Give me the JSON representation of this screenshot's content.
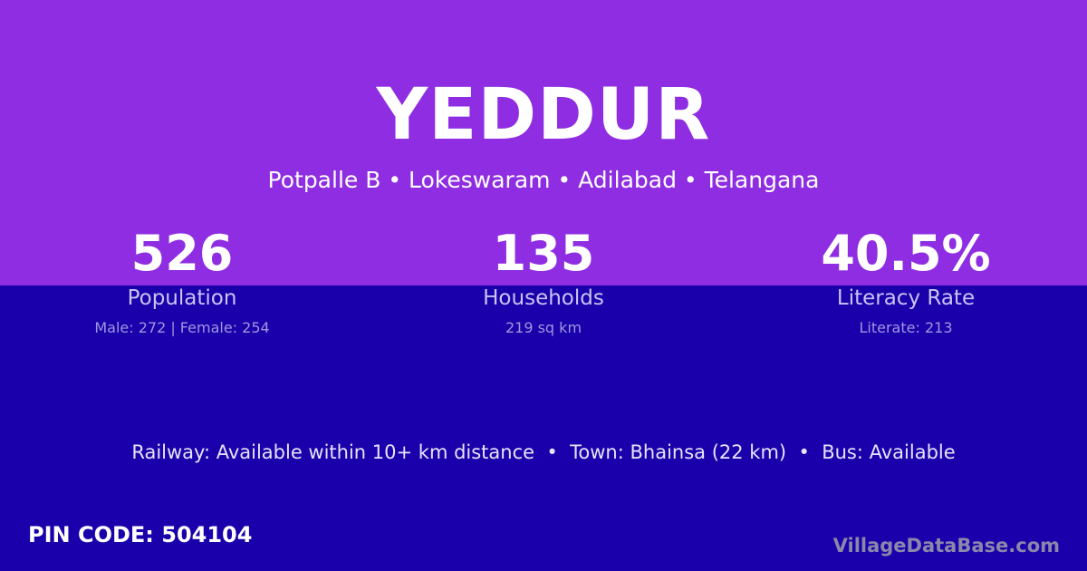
{
  "colors": {
    "top_band": "#8e2de2",
    "background": "#1a00aa"
  },
  "village": {
    "name": "YEDDUR",
    "location": "Potpalle B • Lokeswaram • Adilabad • Telangana"
  },
  "stats": [
    {
      "value": "526",
      "label": "Population",
      "detail": "Male: 272 | Female: 254"
    },
    {
      "value": "135",
      "label": "Households",
      "detail": "219 sq km"
    },
    {
      "value": "40.5%",
      "label": "Literacy Rate",
      "detail": "Literate: 213"
    }
  ],
  "connectivity": "Railway: Available within 10+ km distance  •  Town: Bhainsa (22 km)  •  Bus: Available",
  "pin_code": "PIN CODE: 504104",
  "brand": "VillageDataBase.com"
}
